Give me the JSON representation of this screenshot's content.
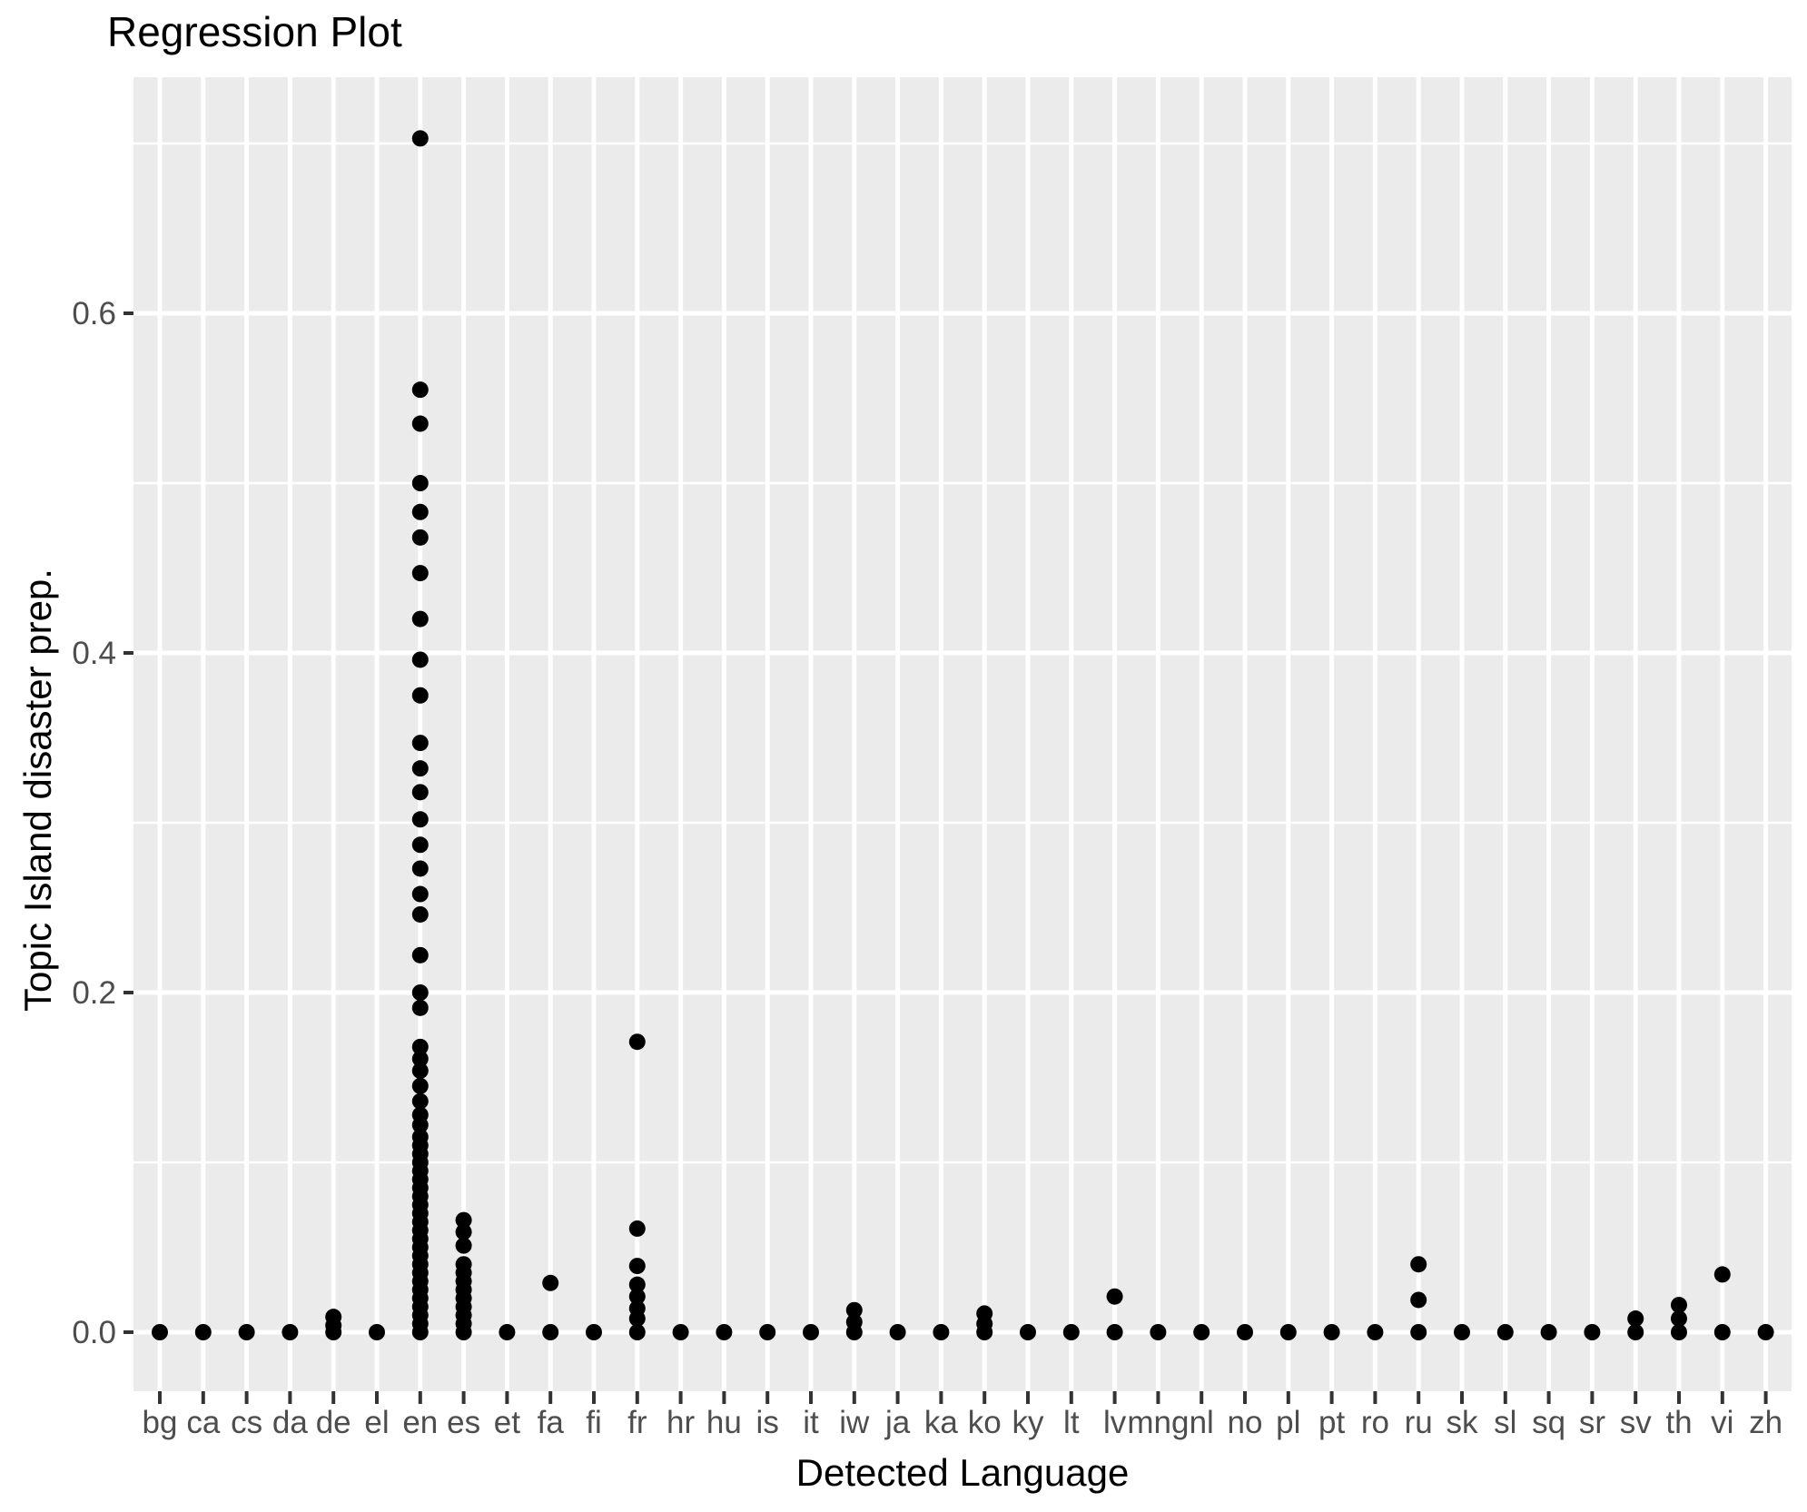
{
  "chart": {
    "title": "Regression Plot",
    "xlabel": "Detected Language",
    "ylabel": "Topic Island disaster prep."
  },
  "chart_data": {
    "type": "scatter",
    "title": "Regression Plot",
    "xlabel": "Detected Language",
    "ylabel": "Topic Island disaster prep.",
    "x_categories": [
      "bg",
      "ca",
      "cs",
      "da",
      "de",
      "el",
      "en",
      "es",
      "et",
      "fa",
      "fi",
      "fr",
      "hr",
      "hu",
      "is",
      "it",
      "iw",
      "ja",
      "ka",
      "ko",
      "ky",
      "lt",
      "lv",
      "mng",
      "nl",
      "no",
      "pl",
      "pt",
      "ro",
      "ru",
      "sk",
      "sl",
      "sq",
      "sr",
      "sv",
      "th",
      "vi",
      "zh"
    ],
    "series": [
      {
        "lang": "bg",
        "values": [
          0
        ]
      },
      {
        "lang": "ca",
        "values": [
          0
        ]
      },
      {
        "lang": "cs",
        "values": [
          0
        ]
      },
      {
        "lang": "da",
        "values": [
          0
        ]
      },
      {
        "lang": "de",
        "values": [
          0.009,
          0.004,
          0
        ]
      },
      {
        "lang": "el",
        "values": [
          0
        ]
      },
      {
        "lang": "en",
        "values": [
          0.703,
          0.555,
          0.535,
          0.5,
          0.483,
          0.468,
          0.447,
          0.42,
          0.396,
          0.375,
          0.347,
          0.332,
          0.318,
          0.302,
          0.287,
          0.273,
          0.258,
          0.246,
          0.222,
          0.2,
          0.191,
          0.168,
          0.161,
          0.154,
          0.145,
          0.136,
          0.128,
          0.122,
          0.115,
          0.11,
          0.105,
          0.1,
          0.095,
          0.09,
          0.085,
          0.08,
          0.075,
          0.07,
          0.065,
          0.06,
          0.055,
          0.05,
          0.045,
          0.04,
          0.035,
          0.03,
          0.025,
          0.02,
          0.015,
          0.01,
          0.005,
          0
        ]
      },
      {
        "lang": "es",
        "values": [
          0.066,
          0.059,
          0.051,
          0.04,
          0.035,
          0.03,
          0.025,
          0.02,
          0.015,
          0.01,
          0.005,
          0
        ]
      },
      {
        "lang": "et",
        "values": [
          0
        ]
      },
      {
        "lang": "fa",
        "values": [
          0.029,
          0
        ]
      },
      {
        "lang": "fi",
        "values": [
          0
        ]
      },
      {
        "lang": "fr",
        "values": [
          0.171,
          0.061,
          0.039,
          0.028,
          0.021,
          0.014,
          0.008,
          0
        ]
      },
      {
        "lang": "hr",
        "values": [
          0
        ]
      },
      {
        "lang": "hu",
        "values": [
          0
        ]
      },
      {
        "lang": "is",
        "values": [
          0
        ]
      },
      {
        "lang": "it",
        "values": [
          0
        ]
      },
      {
        "lang": "iw",
        "values": [
          0.013,
          0.006,
          0
        ]
      },
      {
        "lang": "ja",
        "values": [
          0
        ]
      },
      {
        "lang": "ka",
        "values": [
          0
        ]
      },
      {
        "lang": "ko",
        "values": [
          0.011,
          0.005,
          0
        ]
      },
      {
        "lang": "ky",
        "values": [
          0
        ]
      },
      {
        "lang": "lt",
        "values": [
          0
        ]
      },
      {
        "lang": "lv",
        "values": [
          0.021,
          0
        ]
      },
      {
        "lang": "mng",
        "values": [
          0
        ]
      },
      {
        "lang": "nl",
        "values": [
          0
        ]
      },
      {
        "lang": "no",
        "values": [
          0
        ]
      },
      {
        "lang": "pl",
        "values": [
          0
        ]
      },
      {
        "lang": "pt",
        "values": [
          0
        ]
      },
      {
        "lang": "ro",
        "values": [
          0
        ]
      },
      {
        "lang": "ru",
        "values": [
          0.04,
          0.019,
          0
        ]
      },
      {
        "lang": "sk",
        "values": [
          0
        ]
      },
      {
        "lang": "sl",
        "values": [
          0
        ]
      },
      {
        "lang": "sq",
        "values": [
          0
        ]
      },
      {
        "lang": "sr",
        "values": [
          0
        ]
      },
      {
        "lang": "sv",
        "values": [
          0.008,
          0
        ]
      },
      {
        "lang": "th",
        "values": [
          0.016,
          0.008,
          0
        ]
      },
      {
        "lang": "vi",
        "values": [
          0.034,
          0
        ]
      },
      {
        "lang": "zh",
        "values": [
          0
        ]
      }
    ],
    "ytick_labels": [
      "0.0",
      "0.2",
      "0.4",
      "0.6"
    ],
    "ytick_values": [
      0,
      0.2,
      0.4,
      0.6
    ],
    "yminor_values": [
      0.1,
      0.3,
      0.5,
      0.7
    ],
    "ylim": [
      -0.035,
      0.739
    ],
    "legend": "none",
    "grid": "white major and minor horizontal lines, white major vertical lines on grey panel",
    "colors": {
      "panel": "#EBEBEB",
      "grid": "#FFFFFF",
      "point": "#000000",
      "tick_text": "#4D4D4D",
      "tick_mark": "#333333",
      "title_text": "#000000"
    }
  }
}
